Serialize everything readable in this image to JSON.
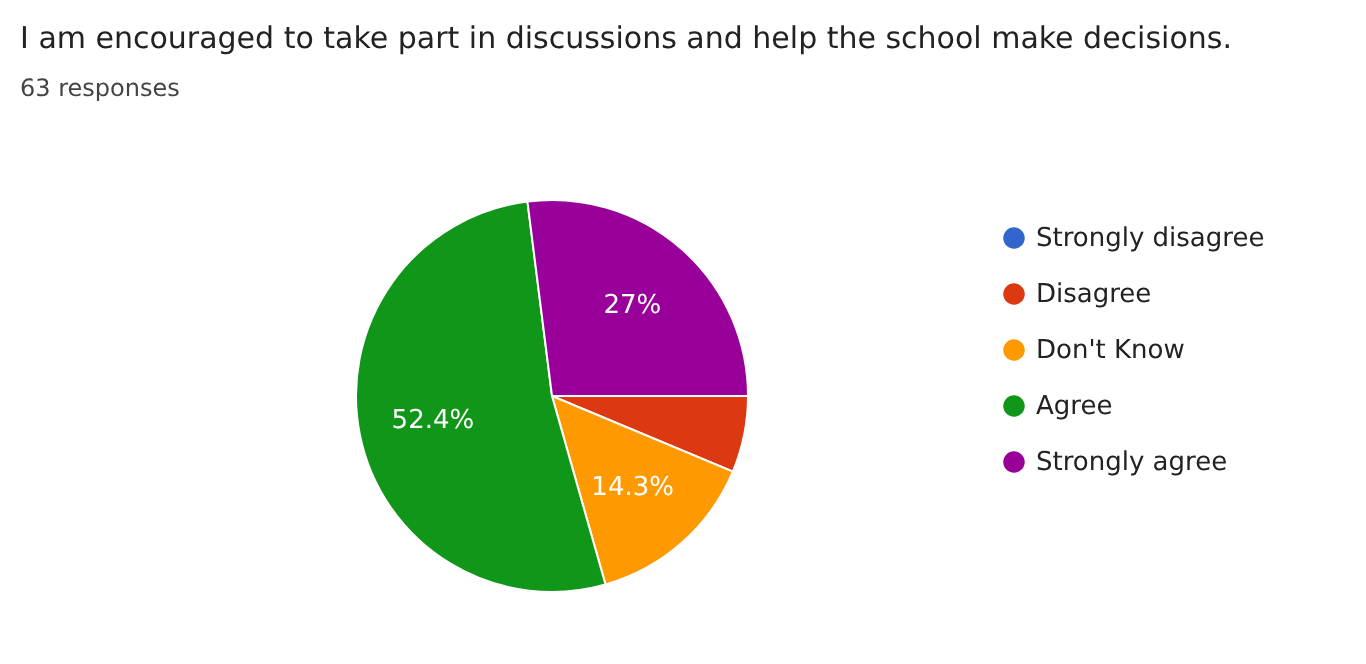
{
  "chart_data": {
    "type": "pie",
    "title": "I am encouraged to take part in discussions and help the school make decisions.",
    "subtitle": "63 responses",
    "categories": [
      "Strongly disagree",
      "Disagree",
      "Don't Know",
      "Agree",
      "Strongly agree"
    ],
    "values": [
      0,
      6.3,
      14.3,
      52.4,
      27
    ],
    "colors": [
      "#3366cc",
      "#dc3912",
      "#ff9900",
      "#109618",
      "#990099"
    ],
    "value_labels": [
      null,
      null,
      "14.3%",
      "52.4%",
      "27%"
    ],
    "legend": "right"
  }
}
